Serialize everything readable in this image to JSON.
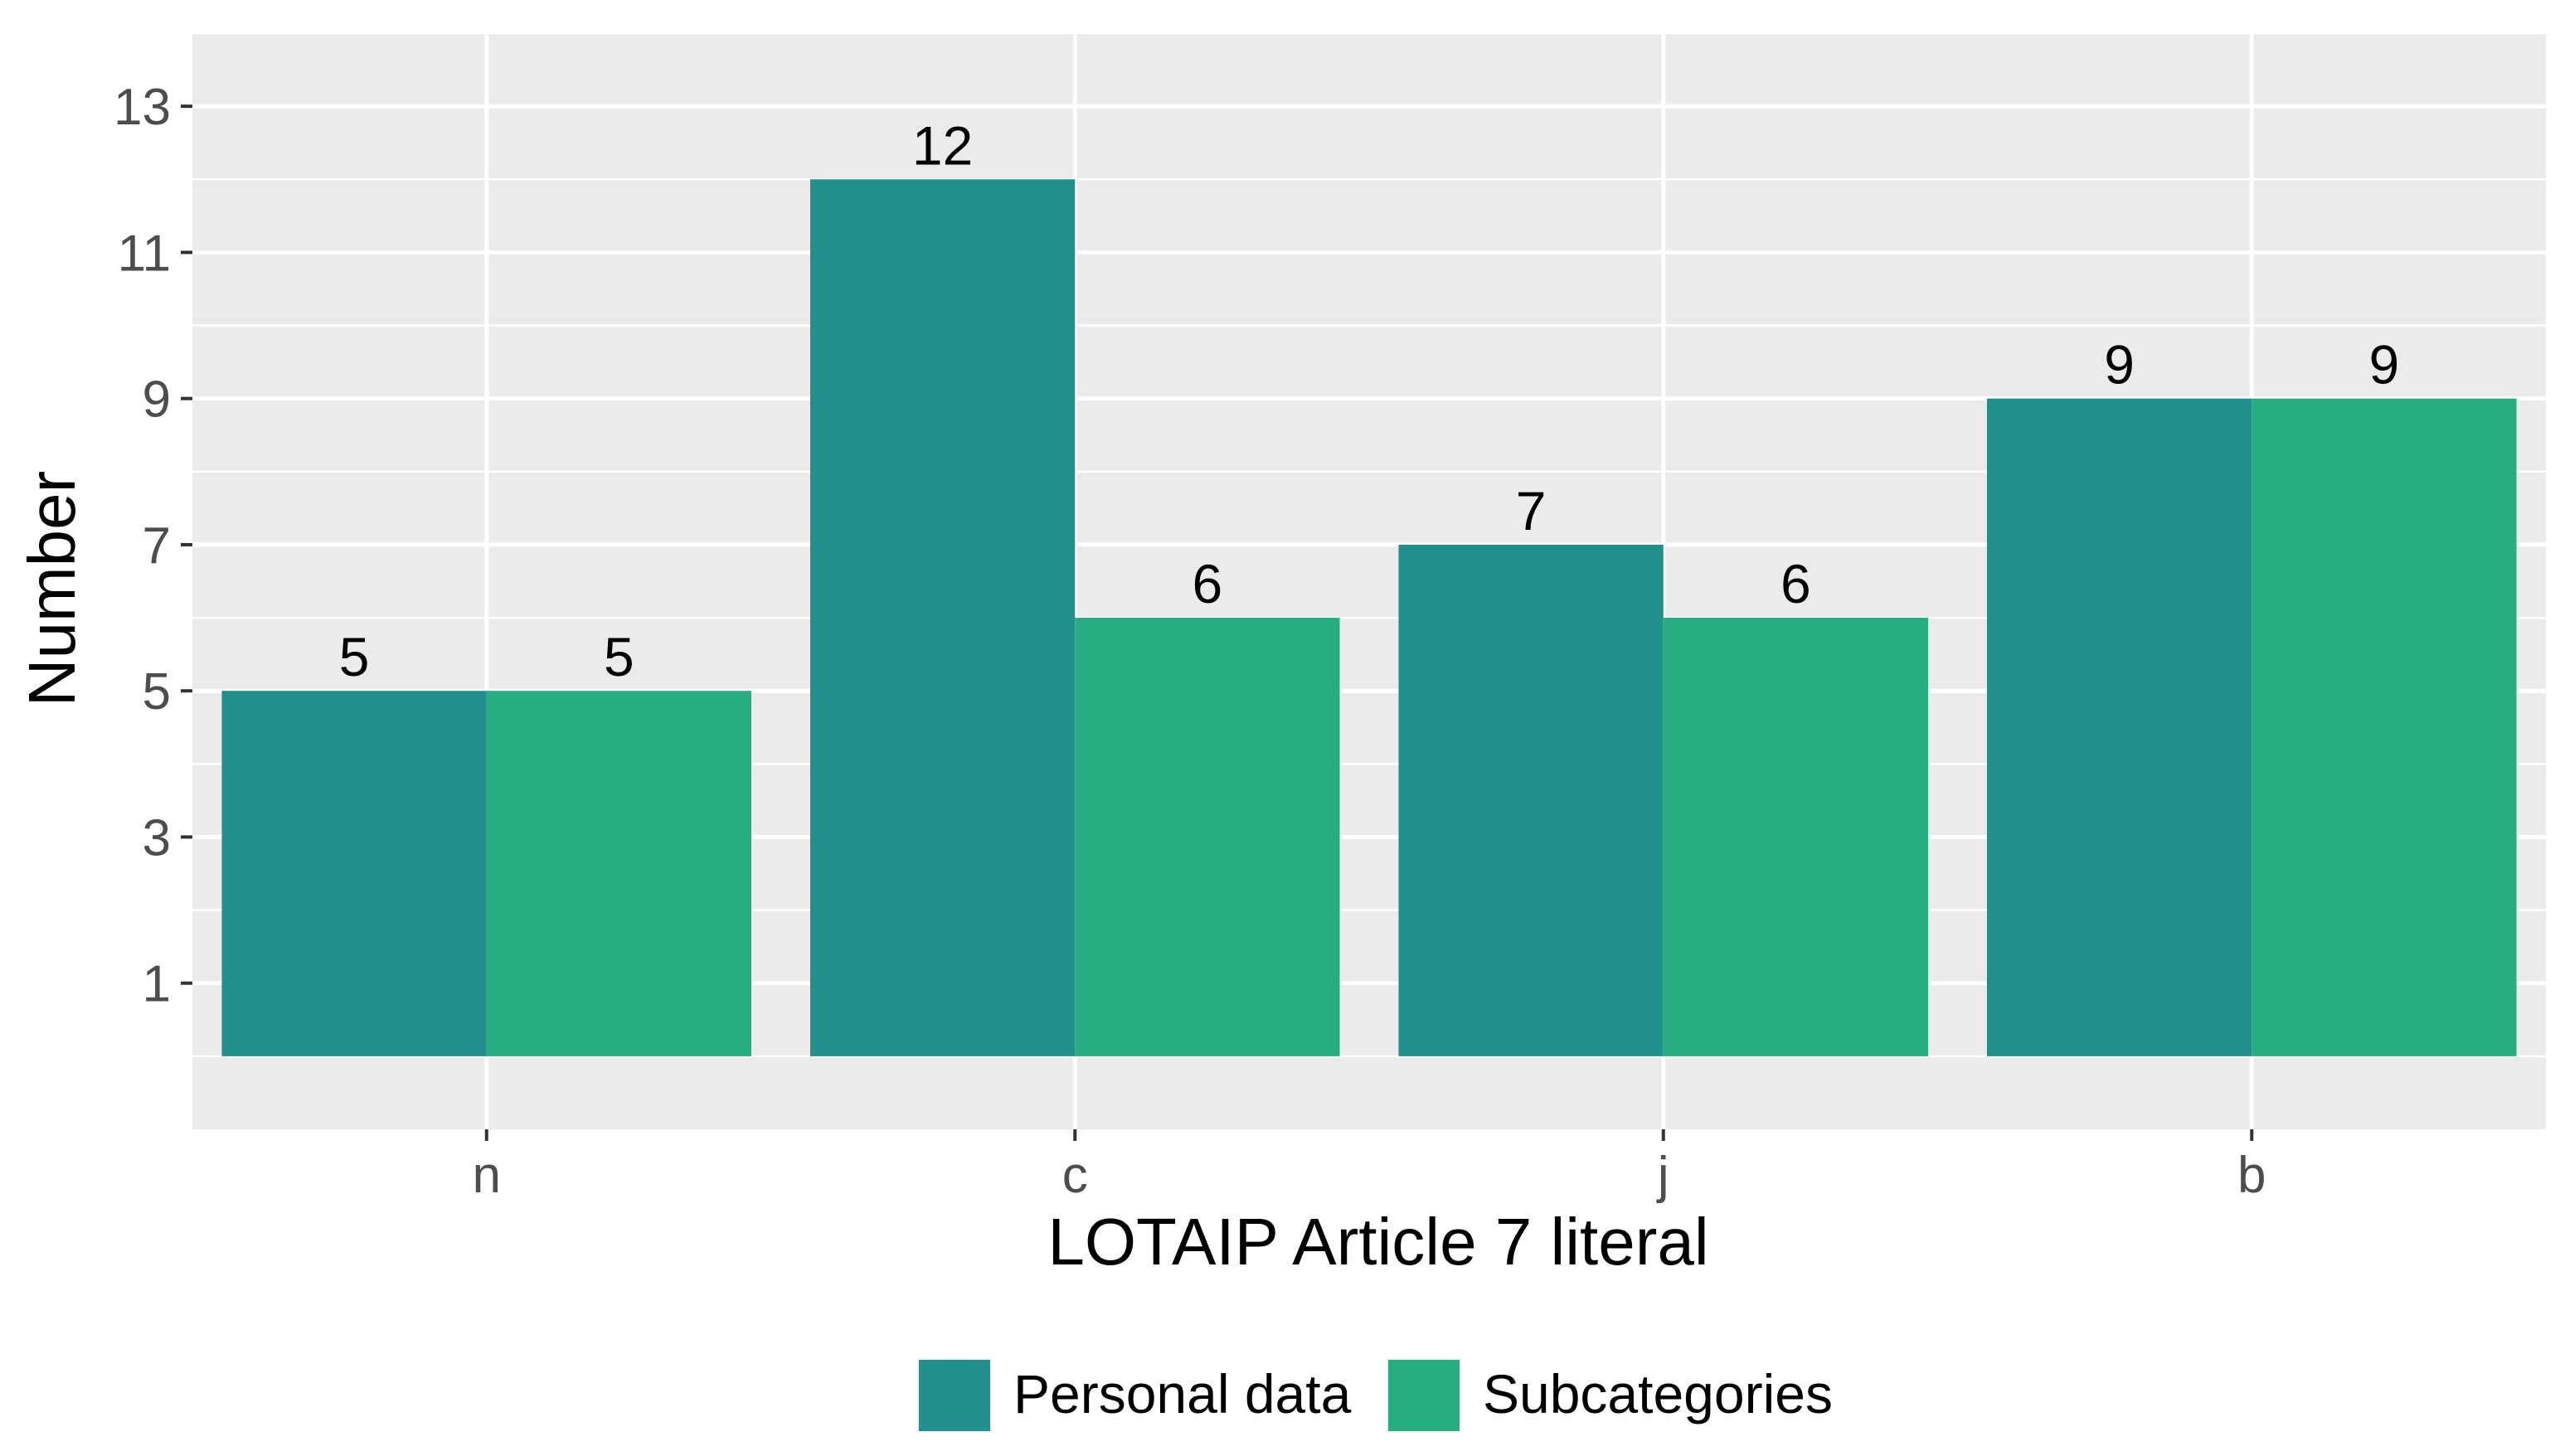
{
  "chart_data": {
    "type": "bar",
    "xlabel": "LOTAIP Article 7 literal",
    "ylabel": "Number",
    "categories": [
      "n",
      "c",
      "j",
      "b"
    ],
    "ylim": [
      -1,
      14
    ],
    "yticks": [
      1,
      3,
      5,
      7,
      9,
      11,
      13
    ],
    "grid": true,
    "legend_position": "bottom",
    "series": [
      {
        "name": "Personal data",
        "values": [
          5,
          12,
          7,
          9
        ],
        "color": "#21908C"
      },
      {
        "name": "Subcategories",
        "values": [
          5,
          6,
          6,
          9
        ],
        "color": "#27AD81"
      }
    ],
    "data_labels": true,
    "panel_background": "#EBEBEB",
    "grid_color": "#FFFFFF"
  }
}
